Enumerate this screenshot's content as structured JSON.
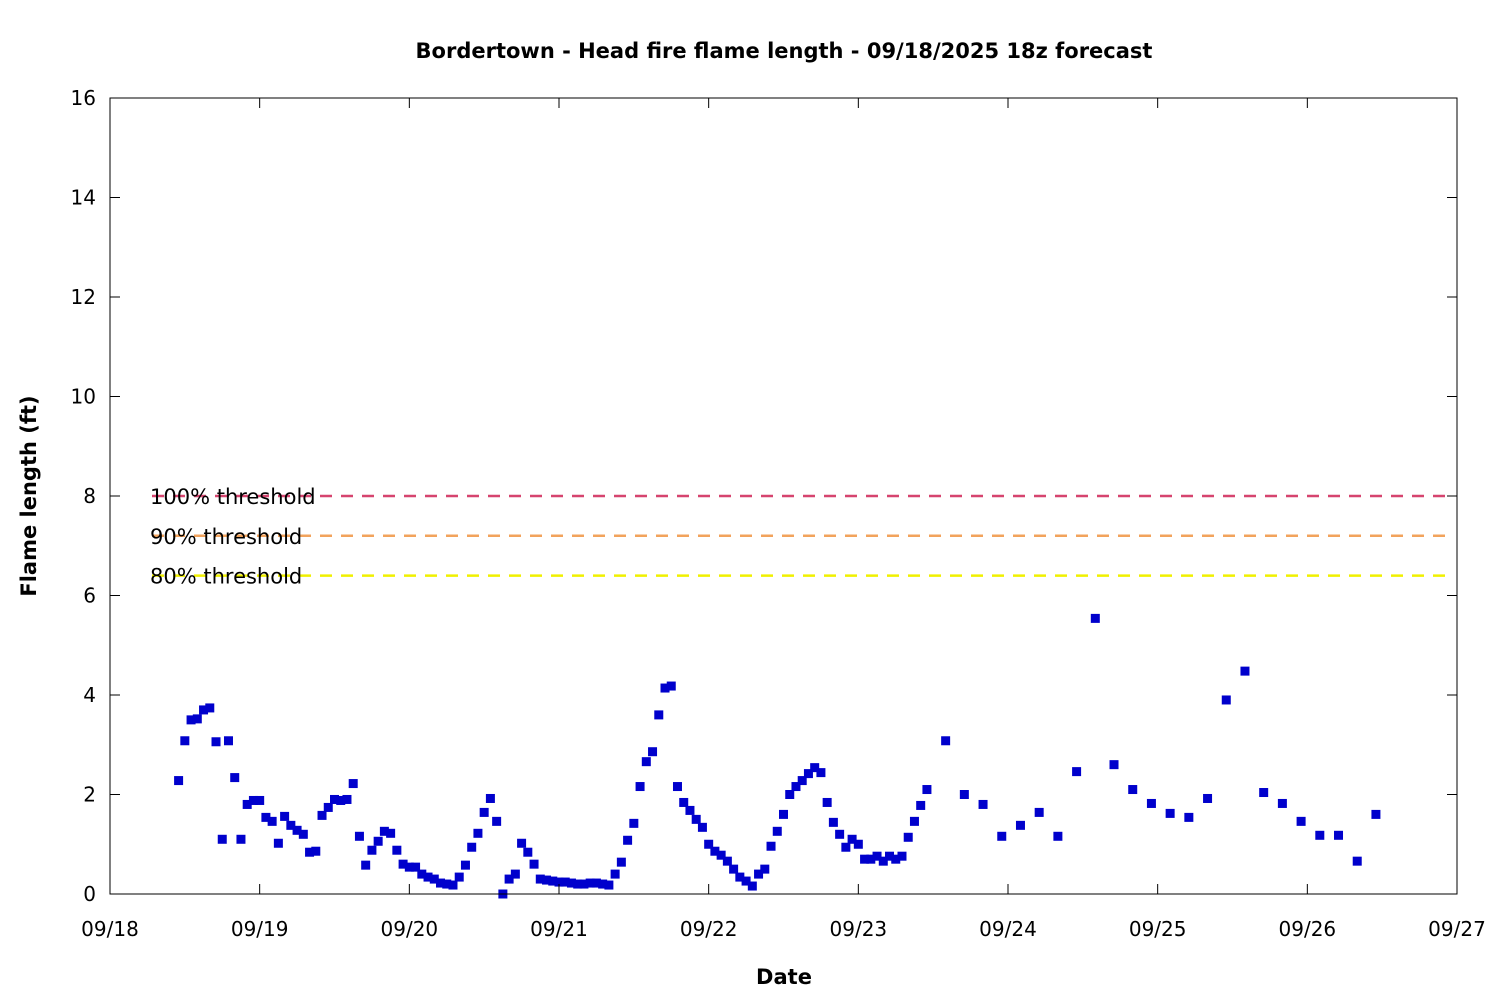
{
  "chart_data": {
    "type": "scatter",
    "title": "Bordertown - Head fire flame length - 09/18/2025 18z forecast",
    "xlabel": "Date",
    "ylabel": "Flame length (ft)",
    "xlim": [
      "09/18",
      "09/27"
    ],
    "ylim": [
      0,
      16
    ],
    "x_ticks": [
      "09/18",
      "09/19",
      "09/20",
      "09/21",
      "09/22",
      "09/23",
      "09/24",
      "09/25",
      "09/26",
      "09/27"
    ],
    "y_ticks": [
      0,
      2,
      4,
      6,
      8,
      10,
      12,
      14,
      16
    ],
    "grid": false,
    "marker_color": "#0000cc",
    "reference_lines": [
      {
        "label": "100% threshold",
        "y": 8.0,
        "color": "#d6446f",
        "style": "dashed"
      },
      {
        "label": "90% threshold",
        "y": 7.2,
        "color": "#f2a35c",
        "style": "dashed"
      },
      {
        "label": "80% threshold",
        "y": 6.4,
        "color": "#f0f000",
        "style": "dashed"
      }
    ],
    "series": [
      {
        "x": [
          "09/18 11:00",
          "09/18 12:00",
          "09/18 13:00",
          "09/18 14:00",
          "09/18 15:00",
          "09/18 16:00",
          "09/18 17:00",
          "09/18 18:00",
          "09/18 19:00",
          "09/18 20:00",
          "09/18 21:00",
          "09/18 22:00",
          "09/18 23:00",
          "09/19 00:00",
          "09/19 01:00",
          "09/19 02:00",
          "09/19 03:00",
          "09/19 04:00",
          "09/19 05:00",
          "09/19 06:00",
          "09/19 07:00",
          "09/19 08:00",
          "09/19 09:00",
          "09/19 10:00",
          "09/19 11:00",
          "09/19 12:00",
          "09/19 13:00",
          "09/19 14:00",
          "09/19 15:00",
          "09/19 16:00",
          "09/19 17:00",
          "09/19 18:00",
          "09/19 19:00",
          "09/19 20:00",
          "09/19 21:00",
          "09/19 22:00",
          "09/19 23:00",
          "09/20 00:00",
          "09/20 01:00",
          "09/20 02:00",
          "09/20 03:00",
          "09/20 04:00",
          "09/20 05:00",
          "09/20 06:00",
          "09/20 07:00",
          "09/20 08:00",
          "09/20 09:00",
          "09/20 10:00",
          "09/20 11:00",
          "09/20 12:00",
          "09/20 13:00",
          "09/20 14:00",
          "09/20 15:00",
          "09/20 16:00",
          "09/20 17:00",
          "09/20 18:00",
          "09/20 19:00",
          "09/20 20:00",
          "09/20 21:00",
          "09/20 22:00",
          "09/20 23:00",
          "09/21 00:00",
          "09/21 01:00",
          "09/21 02:00",
          "09/21 03:00",
          "09/21 04:00",
          "09/21 05:00",
          "09/21 06:00",
          "09/21 07:00",
          "09/21 08:00",
          "09/21 09:00",
          "09/21 10:00",
          "09/21 11:00",
          "09/21 12:00",
          "09/21 13:00",
          "09/21 14:00",
          "09/21 15:00",
          "09/21 16:00",
          "09/21 17:00",
          "09/21 18:00",
          "09/21 19:00",
          "09/21 20:00",
          "09/21 21:00",
          "09/21 22:00",
          "09/21 23:00",
          "09/22 00:00",
          "09/22 01:00",
          "09/22 02:00",
          "09/22 03:00",
          "09/22 04:00",
          "09/22 05:00",
          "09/22 06:00",
          "09/22 07:00",
          "09/22 08:00",
          "09/22 09:00",
          "09/22 10:00",
          "09/22 11:00",
          "09/22 12:00",
          "09/22 13:00",
          "09/22 14:00",
          "09/22 15:00",
          "09/22 16:00",
          "09/22 17:00",
          "09/22 18:00",
          "09/22 19:00",
          "09/22 20:00",
          "09/22 21:00",
          "09/22 22:00",
          "09/22 23:00",
          "09/23 00:00",
          "09/23 01:00",
          "09/23 02:00",
          "09/23 03:00",
          "09/23 04:00",
          "09/23 05:00",
          "09/23 06:00",
          "09/23 07:00",
          "09/23 08:00",
          "09/23 09:00",
          "09/23 10:00",
          "09/23 11:00",
          "09/23 14:00",
          "09/23 17:00",
          "09/23 20:00",
          "09/23 23:00",
          "09/24 02:00",
          "09/24 05:00",
          "09/24 08:00",
          "09/24 11:00",
          "09/24 14:00",
          "09/24 17:00",
          "09/24 20:00",
          "09/24 23:00",
          "09/25 02:00",
          "09/25 05:00",
          "09/25 08:00",
          "09/25 11:00",
          "09/25 14:00",
          "09/25 17:00",
          "09/25 20:00",
          "09/25 23:00",
          "09/26 02:00",
          "09/26 05:00",
          "09/26 08:00",
          "09/26 11:00"
        ],
        "y": [
          2.28,
          3.08,
          3.5,
          3.52,
          3.7,
          3.74,
          3.06,
          1.1,
          3.08,
          2.34,
          1.1,
          1.8,
          1.88,
          1.88,
          1.54,
          1.46,
          1.02,
          1.56,
          1.38,
          1.28,
          1.2,
          0.84,
          0.86,
          1.58,
          1.74,
          1.9,
          1.88,
          1.9,
          2.22,
          1.16,
          0.58,
          0.88,
          1.06,
          1.26,
          1.22,
          0.88,
          0.6,
          0.54,
          0.54,
          0.4,
          0.34,
          0.3,
          0.22,
          0.2,
          0.18,
          0.34,
          0.58,
          0.94,
          1.22,
          1.64,
          1.92,
          1.46,
          0.0,
          0.3,
          0.4,
          1.02,
          0.84,
          0.6,
          0.3,
          0.28,
          0.26,
          0.24,
          0.24,
          0.22,
          0.2,
          0.2,
          0.22,
          0.22,
          0.2,
          0.18,
          0.4,
          0.64,
          1.08,
          1.42,
          2.16,
          2.66,
          2.86,
          3.6,
          4.14,
          4.18,
          2.16,
          1.84,
          1.68,
          1.5,
          1.34,
          1.0,
          0.86,
          0.78,
          0.66,
          0.5,
          0.34,
          0.26,
          0.16,
          0.4,
          0.5,
          0.96,
          1.26,
          1.6,
          2.0,
          2.16,
          2.28,
          2.42,
          2.54,
          2.44,
          1.84,
          1.44,
          1.2,
          0.94,
          1.1,
          1.0,
          0.7,
          0.7,
          0.76,
          0.66,
          0.76,
          0.7,
          0.76,
          1.14,
          1.46,
          1.78,
          2.1,
          3.08,
          2.0,
          1.8,
          1.16,
          1.38,
          1.64,
          1.16,
          2.46,
          5.54,
          2.6,
          2.1,
          1.82,
          1.62,
          1.54,
          1.92,
          3.9,
          4.48,
          2.04,
          1.82,
          1.46,
          1.18,
          1.18,
          0.66,
          1.6
        ]
      }
    ]
  }
}
